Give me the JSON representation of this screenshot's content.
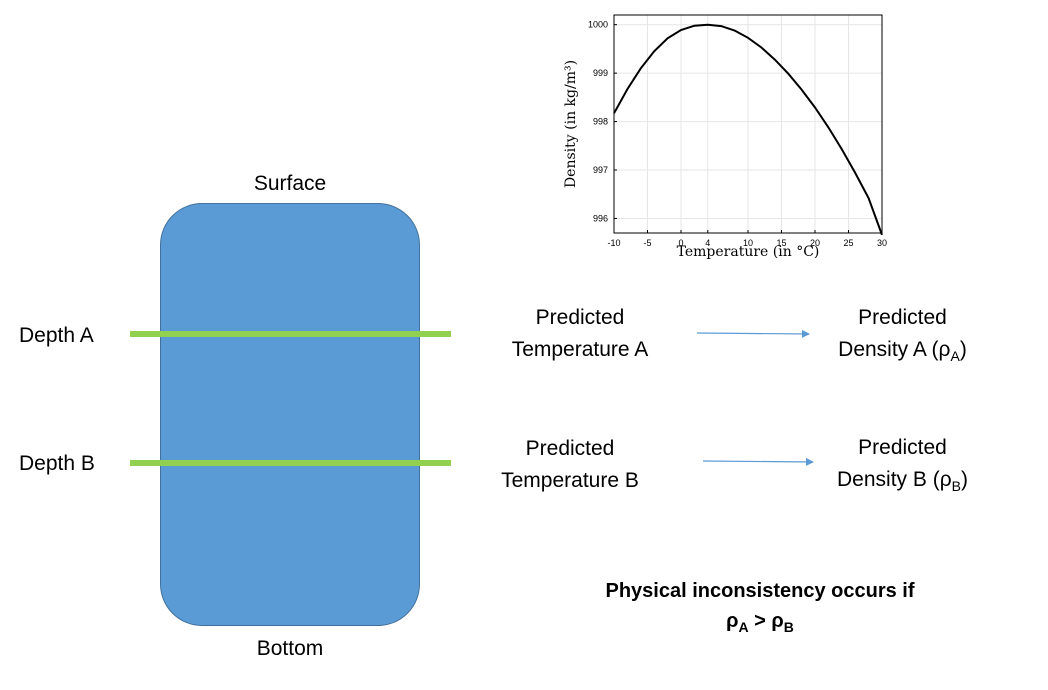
{
  "lake": {
    "surface_label": "Surface",
    "bottom_label": "Bottom",
    "color": "#5b9bd5",
    "depth_line_color": "#92d050"
  },
  "depths": [
    {
      "depth_label": "Depth A",
      "temp_line1": "Predicted",
      "temp_line2": "Temperature A",
      "density_line1": "Predicted",
      "density_line2_prefix": "Density A (ρ",
      "density_sub": "A",
      "density_suffix": ")"
    },
    {
      "depth_label": "Depth B",
      "temp_line1": "Predicted",
      "temp_line2": "Temperature B",
      "density_line1": "Predicted",
      "density_line2_prefix": "Density B (ρ",
      "density_sub": "B",
      "density_suffix": ")"
    }
  ],
  "conclusion": {
    "line1": "Physical inconsistency occurs if",
    "rho": "ρ",
    "sub_a": "A",
    "gt": " > ",
    "sub_b": "B"
  },
  "arrow_color": "#5b9bd5",
  "chart_data": {
    "type": "line",
    "xlabel": "Temperature (in °C)",
    "ylabel": "Density (in kg/m³)",
    "xlim": [
      -10,
      30
    ],
    "ylim": [
      995.7,
      1000.2
    ],
    "xticks": [
      -10,
      -5,
      0,
      4,
      10,
      15,
      20,
      25,
      30
    ],
    "yticks": [
      996,
      997,
      998,
      999,
      1000
    ],
    "grid": true,
    "series": [
      {
        "x": [
          -10,
          -8,
          -6,
          -4,
          -2,
          0,
          2,
          4,
          6,
          8,
          10,
          12,
          14,
          16,
          18,
          20,
          22,
          24,
          26,
          28,
          30
        ],
        "y": [
          998.17,
          998.67,
          999.1,
          999.45,
          999.72,
          999.89,
          999.98,
          1000.0,
          999.97,
          999.88,
          999.73,
          999.53,
          999.28,
          998.99,
          998.66,
          998.29,
          997.88,
          997.43,
          996.94,
          996.42,
          995.66
        ]
      }
    ]
  }
}
